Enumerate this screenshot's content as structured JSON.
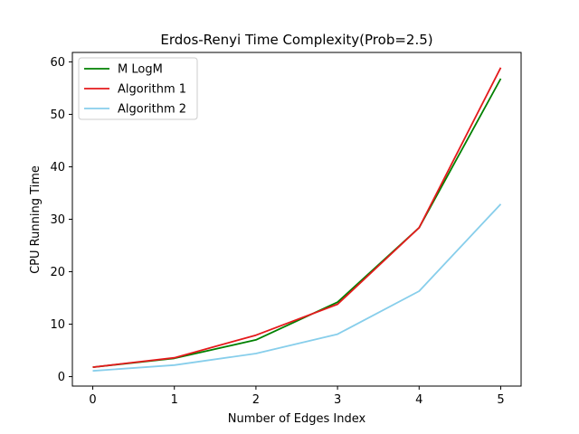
{
  "chart_data": {
    "type": "line",
    "title": "Erdos-Renyi Time Complexity(Prob=2.5)",
    "xlabel": "Number of Edges Index",
    "ylabel": "CPU Running Time",
    "x": [
      0,
      1,
      2,
      3,
      4,
      5
    ],
    "xticks": [
      "0",
      "1",
      "2",
      "3",
      "4",
      "5"
    ],
    "yticks": [
      "0",
      "10",
      "20",
      "30",
      "40",
      "50",
      "60"
    ],
    "xlim": [
      -0.25,
      5.25
    ],
    "ylim": [
      -1.8,
      61.8
    ],
    "grid": false,
    "legend_position": "top-left",
    "series": [
      {
        "name": "M LogM",
        "color": "#008000",
        "values": [
          1.8,
          3.5,
          7.0,
          14.2,
          28.4,
          56.8
        ]
      },
      {
        "name": "Algorithm 1",
        "color": "#e41a1c",
        "values": [
          1.8,
          3.6,
          7.9,
          13.8,
          28.4,
          58.9
        ]
      },
      {
        "name": "Algorithm 2",
        "color": "#87ceeb",
        "values": [
          1.1,
          2.2,
          4.4,
          8.1,
          16.3,
          32.9
        ]
      }
    ]
  }
}
